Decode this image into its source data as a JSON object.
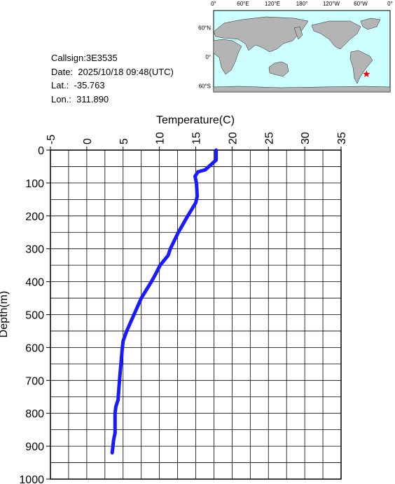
{
  "info": {
    "callsign": "Callsign:3E3535",
    "date": "Date:  2025/10/18 09:48(UTC)",
    "lat": "Lat.:  -35.763",
    "lon": "Lon.:  311.890",
    "lat_value": "-35.763",
    "lon_value": "311.890"
  },
  "map": {
    "top_labels": [
      "0°",
      "60°E",
      "120°E",
      "180°",
      "120°W",
      "60°W",
      "0°"
    ],
    "left_labels": [
      "60°N",
      "0°",
      "60°S"
    ]
  },
  "chart_data": {
    "type": "line",
    "x_label": "Temperature(C)",
    "y_label": "Depth(m)",
    "xlim": [
      -5,
      35
    ],
    "ylim": [
      0,
      1000
    ],
    "y_reversed": true,
    "x_axis_top": true,
    "xticks": [
      -5,
      0,
      5,
      10,
      15,
      20,
      25,
      30,
      35
    ],
    "yticks": [
      0,
      100,
      200,
      300,
      400,
      500,
      600,
      700,
      800,
      900,
      1000
    ],
    "x_grid": [
      -2.5,
      2.5,
      7.5,
      12.5,
      17.5,
      22.5,
      27.5,
      32.5
    ],
    "y_grid": [
      50,
      150,
      250,
      350,
      450,
      550,
      650,
      750,
      850,
      950
    ],
    "grid": true,
    "series": [
      {
        "color": "#1a1aff",
        "temperature": [
          17.8,
          17.8,
          16.3,
          15.3,
          14.9,
          15.1,
          15.2,
          15.0,
          13.9,
          12.6,
          11.5,
          11.2,
          10.1,
          9.4,
          8.9,
          7.5,
          6.5,
          5.5,
          5.0,
          4.9,
          4.5,
          4.3,
          4.0,
          3.9,
          3.9,
          3.7,
          3.5
        ],
        "depth": [
          0,
          30,
          60,
          66,
          80,
          100,
          140,
          160,
          200,
          250,
          300,
          320,
          350,
          380,
          400,
          450,
          500,
          550,
          580,
          600,
          700,
          760,
          780,
          800,
          860,
          880,
          920
        ]
      }
    ]
  }
}
